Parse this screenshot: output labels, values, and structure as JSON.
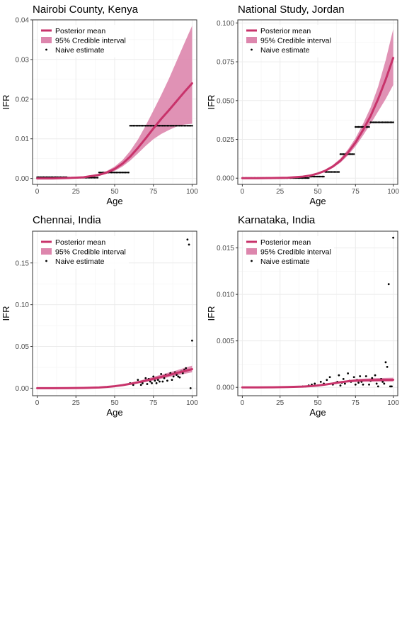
{
  "colors": {
    "mean": "#c8336b",
    "band": "#dd86ad",
    "points": "#000000",
    "grid": "#ebebeb",
    "frame": "#333333",
    "tick_text": "#4d4d4d"
  },
  "legend": {
    "mean_label": "Posterior mean",
    "band_label": "95% Credible interval",
    "points_label": "Naive estimate"
  },
  "chart_data": [
    {
      "type": "line",
      "title": "Nairobi County, Kenya",
      "xlabel": "Age",
      "ylabel": "IFR",
      "xlim": [
        -3,
        103
      ],
      "ylim": [
        -0.0015,
        0.04
      ],
      "xticks": [
        0,
        25,
        50,
        75,
        100
      ],
      "yticks": [
        0.0,
        0.01,
        0.02,
        0.03,
        0.04
      ],
      "ytick_labels": [
        "0.00",
        "0.01",
        "0.02",
        "0.03",
        "0.04"
      ],
      "grid": true,
      "legend_position": "top-left",
      "series": [
        {
          "kind": "posterior-mean",
          "x": [
            0,
            10,
            20,
            30,
            40,
            45,
            50,
            55,
            60,
            65,
            70,
            75,
            80,
            85,
            90,
            95,
            100
          ],
          "y": [
            0,
            0,
            0.0001,
            0.0003,
            0.0009,
            0.0015,
            0.0024,
            0.0037,
            0.0055,
            0.0077,
            0.0101,
            0.0126,
            0.015,
            0.0172,
            0.0195,
            0.0218,
            0.024
          ]
        },
        {
          "kind": "credible-interval",
          "x": [
            0,
            10,
            20,
            30,
            40,
            45,
            50,
            55,
            60,
            65,
            70,
            75,
            80,
            85,
            90,
            95,
            100
          ],
          "lower": [
            0,
            0,
            0,
            0.0002,
            0.0007,
            0.0012,
            0.0019,
            0.003,
            0.0045,
            0.0063,
            0.0082,
            0.0099,
            0.0112,
            0.0122,
            0.0131,
            0.0136,
            0.0138
          ],
          "upper": [
            0.0001,
            0.0001,
            0.0002,
            0.0005,
            0.0012,
            0.0019,
            0.003,
            0.0046,
            0.0069,
            0.0098,
            0.0133,
            0.0171,
            0.021,
            0.0251,
            0.0296,
            0.0341,
            0.0385
          ]
        },
        {
          "kind": "naive-estimate",
          "segments": [
            {
              "from": 0,
              "to": 19,
              "value": 0.0003
            },
            {
              "from": 20,
              "to": 39,
              "value": 0.0002
            },
            {
              "from": 40,
              "to": 59,
              "value": 0.0015
            },
            {
              "from": 60,
              "to": 100,
              "value": 0.0133
            }
          ]
        }
      ]
    },
    {
      "type": "line",
      "title": "National Study, Jordan",
      "xlabel": "Age",
      "ylabel": "IFR",
      "xlim": [
        -3,
        103
      ],
      "ylim": [
        -0.004,
        0.102
      ],
      "xticks": [
        0,
        25,
        50,
        75,
        100
      ],
      "yticks": [
        0.0,
        0.025,
        0.05,
        0.075,
        0.1
      ],
      "ytick_labels": [
        "0.000",
        "0.025",
        "0.050",
        "0.075",
        "0.100"
      ],
      "grid": true,
      "legend_position": "top-left",
      "series": [
        {
          "kind": "posterior-mean",
          "x": [
            0,
            10,
            20,
            30,
            40,
            45,
            50,
            55,
            60,
            65,
            70,
            75,
            80,
            85,
            90,
            95,
            100
          ],
          "y": [
            0,
            0,
            0.0001,
            0.0003,
            0.001,
            0.0017,
            0.003,
            0.0048,
            0.0075,
            0.0113,
            0.0165,
            0.023,
            0.031,
            0.04,
            0.051,
            0.0635,
            0.0775
          ]
        },
        {
          "kind": "credible-interval",
          "x": [
            0,
            10,
            20,
            30,
            40,
            45,
            50,
            55,
            60,
            65,
            70,
            75,
            80,
            85,
            90,
            95,
            100
          ],
          "lower": [
            0,
            0,
            0.0001,
            0.0002,
            0.0008,
            0.0014,
            0.0025,
            0.0041,
            0.0066,
            0.01,
            0.0147,
            0.0205,
            0.0275,
            0.035,
            0.043,
            0.051,
            0.06
          ],
          "upper": [
            0.0001,
            0.0001,
            0.0002,
            0.0004,
            0.0012,
            0.002,
            0.0035,
            0.0056,
            0.0085,
            0.0127,
            0.0185,
            0.0258,
            0.035,
            0.0455,
            0.059,
            0.076,
            0.096
          ]
        },
        {
          "kind": "naive-estimate",
          "segments": [
            {
              "from": 0,
              "to": 44,
              "value": 0.0001
            },
            {
              "from": 45,
              "to": 54,
              "value": 0.001
            },
            {
              "from": 55,
              "to": 64,
              "value": 0.004
            },
            {
              "from": 65,
              "to": 74,
              "value": 0.0155
            },
            {
              "from": 75,
              "to": 84,
              "value": 0.033
            },
            {
              "from": 85,
              "to": 100,
              "value": 0.036
            }
          ]
        }
      ]
    },
    {
      "type": "scatter",
      "title": "Chennai, India",
      "xlabel": "Age",
      "ylabel": "IFR",
      "xlim": [
        -3,
        103
      ],
      "ylim": [
        -0.009,
        0.188
      ],
      "xticks": [
        0,
        25,
        50,
        75,
        100
      ],
      "yticks": [
        0.0,
        0.05,
        0.1,
        0.15
      ],
      "ytick_labels": [
        "0.00",
        "0.05",
        "0.10",
        "0.15"
      ],
      "grid": true,
      "legend_position": "top-left",
      "series": [
        {
          "kind": "posterior-mean",
          "x": [
            0,
            10,
            20,
            30,
            40,
            45,
            50,
            55,
            60,
            65,
            70,
            75,
            80,
            85,
            90,
            95,
            100
          ],
          "y": [
            0,
            0,
            0.0001,
            0.0003,
            0.0009,
            0.0015,
            0.0024,
            0.0036,
            0.0052,
            0.007,
            0.009,
            0.0112,
            0.0135,
            0.0158,
            0.0182,
            0.0205,
            0.0228
          ]
        },
        {
          "kind": "credible-interval",
          "x": [
            0,
            10,
            20,
            30,
            40,
            45,
            50,
            55,
            60,
            65,
            70,
            75,
            80,
            85,
            90,
            95,
            100
          ],
          "lower": [
            0,
            0,
            0.0001,
            0.0002,
            0.0007,
            0.0012,
            0.0019,
            0.0029,
            0.0042,
            0.0057,
            0.0074,
            0.0093,
            0.0113,
            0.0133,
            0.0153,
            0.0172,
            0.019
          ],
          "upper": [
            0.0001,
            0.0001,
            0.0002,
            0.0004,
            0.0011,
            0.0018,
            0.0029,
            0.0044,
            0.0063,
            0.0085,
            0.011,
            0.0136,
            0.0162,
            0.0188,
            0.0214,
            0.0242,
            0.027
          ]
        },
        {
          "kind": "naive-estimate",
          "x": [
            60,
            62,
            65,
            67,
            68,
            70,
            71,
            72,
            73,
            74,
            75,
            76,
            77,
            78,
            79,
            80,
            81,
            82,
            83,
            84,
            85,
            86,
            87,
            88,
            89,
            90,
            91,
            92,
            93,
            94,
            95,
            96,
            97,
            98,
            99,
            100
          ],
          "y": [
            0.006,
            0.004,
            0.01,
            0.004,
            0.006,
            0.012,
            0.005,
            0.011,
            0.008,
            0.006,
            0.014,
            0.009,
            0.006,
            0.01,
            0.008,
            0.017,
            0.008,
            0.012,
            0.016,
            0.009,
            0.016,
            0.018,
            0.01,
            0.014,
            0.019,
            0.016,
            0.014,
            0.013,
            0.02,
            0.018,
            0.022,
            0.024,
            0.178,
            0.172,
            0.0,
            0.057
          ]
        }
      ]
    },
    {
      "type": "scatter",
      "title": "Karnataka, India",
      "xlabel": "Age",
      "ylabel": "IFR",
      "xlim": [
        -3,
        103
      ],
      "ylim": [
        -0.0009,
        0.0168
      ],
      "xticks": [
        0,
        25,
        50,
        75,
        100
      ],
      "yticks": [
        0.0,
        0.005,
        0.01,
        0.015
      ],
      "ytick_labels": [
        "0.000",
        "0.005",
        "0.010",
        "0.015"
      ],
      "grid": true,
      "legend_position": "top-left",
      "series": [
        {
          "kind": "posterior-mean",
          "x": [
            0,
            10,
            20,
            30,
            40,
            45,
            50,
            55,
            60,
            65,
            70,
            75,
            80,
            85,
            90,
            95,
            100
          ],
          "y": [
            0,
            0,
            1e-05,
            3e-05,
            8e-05,
            0.00013,
            0.0002,
            0.0003,
            0.00042,
            0.00055,
            0.00065,
            0.00072,
            0.00076,
            0.00078,
            0.0008,
            0.00081,
            0.00082
          ]
        },
        {
          "kind": "credible-interval",
          "x": [
            0,
            10,
            20,
            30,
            40,
            45,
            50,
            55,
            60,
            65,
            70,
            75,
            80,
            85,
            90,
            95,
            100
          ],
          "lower": [
            0,
            0,
            0,
            2e-05,
            6e-05,
            0.0001,
            0.00016,
            0.00024,
            0.00034,
            0.00045,
            0.00053,
            0.00058,
            0.0006,
            0.00061,
            0.00062,
            0.00062,
            0.00062
          ],
          "upper": [
            1e-05,
            2e-05,
            3e-05,
            5e-05,
            0.00011,
            0.00017,
            0.00026,
            0.00038,
            0.00052,
            0.00066,
            0.00078,
            0.00087,
            0.00093,
            0.00097,
            0.001,
            0.00102,
            0.00104
          ]
        },
        {
          "kind": "naive-estimate",
          "x": [
            40,
            42,
            44,
            46,
            48,
            50,
            52,
            54,
            56,
            58,
            60,
            62,
            63,
            64,
            65,
            66,
            67,
            68,
            70,
            71,
            72,
            74,
            75,
            76,
            77,
            78,
            79,
            80,
            82,
            84,
            85,
            86,
            88,
            89,
            90,
            92,
            93,
            94,
            95,
            96,
            97,
            98,
            99,
            100
          ],
          "y": [
            0.0001,
            0.0001,
            0.0002,
            0.0003,
            0.0004,
            0.0002,
            0.0006,
            0.0004,
            0.0008,
            0.0011,
            0.0003,
            0.0005,
            0.0006,
            0.0013,
            0.0002,
            0.0005,
            0.0009,
            0.0004,
            0.0015,
            0.0007,
            0.0006,
            0.0011,
            0.0003,
            0.0008,
            0.0005,
            0.0012,
            0.0006,
            0.0003,
            0.0012,
            0.0003,
            0.0007,
            0.001,
            0.0013,
            0.0004,
            0.0001,
            0.0009,
            0.0006,
            0.0004,
            0.0027,
            0.0022,
            0.0111,
            0.0001,
            0.0001,
            0.0161
          ]
        }
      ]
    }
  ]
}
